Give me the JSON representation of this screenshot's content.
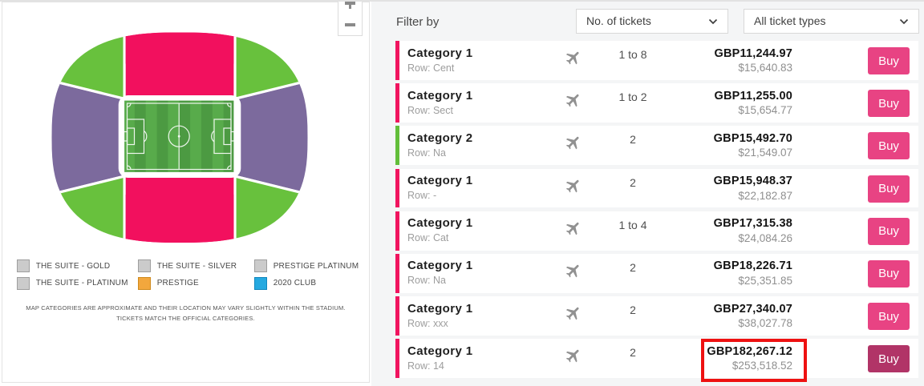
{
  "map": {
    "zoom_in_label": "+",
    "zoom_out_label": "−",
    "legend": [
      {
        "label": "THE SUITE - GOLD",
        "color": "#cbcbcb",
        "border": "#9e9e9e"
      },
      {
        "label": "THE SUITE - SILVER",
        "color": "#cbcbcb",
        "border": "#9e9e9e"
      },
      {
        "label": "PRESTIGE PLATINUM",
        "color": "#cbcbcb",
        "border": "#9e9e9e"
      },
      {
        "label": "THE SUITE - PLATINUM",
        "color": "#cbcbcb",
        "border": "#9e9e9e"
      },
      {
        "label": "PRESTIGE",
        "color": "#f2a73d",
        "border": "#cf8a1d"
      },
      {
        "label": "2020 CLUB",
        "color": "#25a9e0",
        "border": "#1186bd"
      }
    ],
    "disclaimer_line1": "MAP CATEGORIES ARE APPROXIMATE AND THEIR LOCATION MAY VARY SLIGHTLY WITHIN THE STADIUM.",
    "disclaimer_line2": "TICKETS MATCH THE OFFICIAL CATEGORIES.",
    "colors": {
      "pink": "#f2105e",
      "green": "#68c13d",
      "purple": "#7c6a9d",
      "pitch_light": "#58ab4b",
      "pitch_dark": "#4c9a42"
    }
  },
  "filter": {
    "label": "Filter by",
    "tickets_dropdown_value": "No. of tickets",
    "types_dropdown_value": "All ticket types"
  },
  "tickets": [
    {
      "category": "Category 1",
      "row": "Row: Cent",
      "quantity": "1 to 8",
      "price_gbp": "GBP11,244.97",
      "price_usd": "$15,640.83",
      "buy_label": "Buy",
      "accent_color": "#f0145f",
      "buy_color": "#e84383",
      "highlighted": false
    },
    {
      "category": "Category 1",
      "row": "Row: Sect",
      "quantity": "1 to 2",
      "price_gbp": "GBP11,255.00",
      "price_usd": "$15,654.77",
      "buy_label": "Buy",
      "accent_color": "#f0145f",
      "buy_color": "#e84383",
      "highlighted": false
    },
    {
      "category": "Category 2",
      "row": "Row: Na",
      "quantity": "2",
      "price_gbp": "GBP15,492.70",
      "price_usd": "$21,549.07",
      "buy_label": "Buy",
      "accent_color": "#62be3a",
      "buy_color": "#e84383",
      "highlighted": false
    },
    {
      "category": "Category 1",
      "row": "Row: -",
      "quantity": "2",
      "price_gbp": "GBP15,948.37",
      "price_usd": "$22,182.87",
      "buy_label": "Buy",
      "accent_color": "#f0145f",
      "buy_color": "#e84383",
      "highlighted": false
    },
    {
      "category": "Category 1",
      "row": "Row: Cat",
      "quantity": "1 to 4",
      "price_gbp": "GBP17,315.38",
      "price_usd": "$24,084.26",
      "buy_label": "Buy",
      "accent_color": "#f0145f",
      "buy_color": "#e84383",
      "highlighted": false
    },
    {
      "category": "Category 1",
      "row": "Row: Na",
      "quantity": "2",
      "price_gbp": "GBP18,226.71",
      "price_usd": "$25,351.85",
      "buy_label": "Buy",
      "accent_color": "#f0145f",
      "buy_color": "#e84383",
      "highlighted": false
    },
    {
      "category": "Category 1",
      "row": "Row: xxx",
      "quantity": "2",
      "price_gbp": "GBP27,340.07",
      "price_usd": "$38,027.78",
      "buy_label": "Buy",
      "accent_color": "#f0145f",
      "buy_color": "#e84383",
      "highlighted": false
    },
    {
      "category": "Category 1",
      "row": "Row: 14",
      "quantity": "2",
      "price_gbp": "GBP182,267.12",
      "price_usd": "$253,518.52",
      "buy_label": "Buy",
      "accent_color": "#f0145f",
      "buy_color": "#b13467",
      "highlighted": true
    }
  ],
  "highlight_color": "#ee1111"
}
